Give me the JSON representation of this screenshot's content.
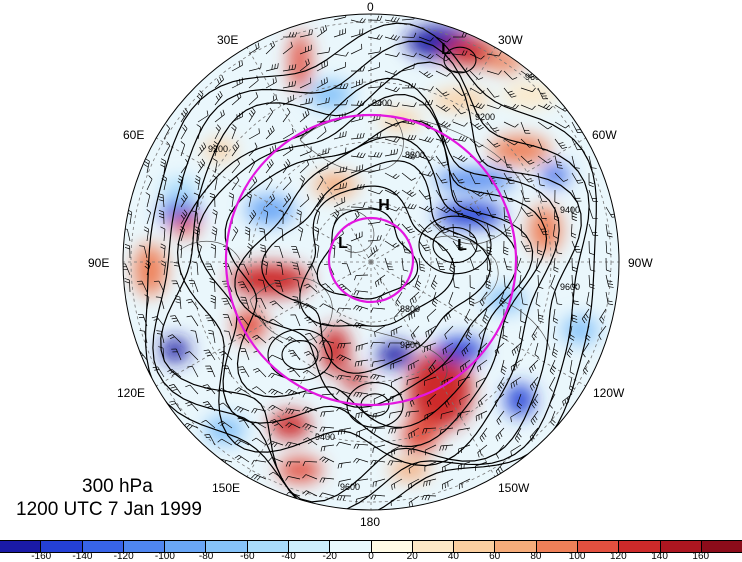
{
  "title": {
    "level": "300 hPa",
    "time": "1200 UTC 7 Jan 1999"
  },
  "longitude_labels": [
    {
      "text": "0",
      "id": "lon-0"
    },
    {
      "text": "30W",
      "id": "lon-30w"
    },
    {
      "text": "60W",
      "id": "lon-60w"
    },
    {
      "text": "90W",
      "id": "lon-90w"
    },
    {
      "text": "120W",
      "id": "lon-120w"
    },
    {
      "text": "150W",
      "id": "lon-150w"
    },
    {
      "text": "180",
      "id": "lon-180"
    },
    {
      "text": "150E",
      "id": "lon-150e"
    },
    {
      "text": "120E",
      "id": "lon-120e"
    },
    {
      "text": "90E",
      "id": "lon-90e"
    },
    {
      "text": "60E",
      "id": "lon-60e"
    },
    {
      "text": "30E",
      "id": "lon-30e"
    }
  ],
  "contour_labels": [
    "9400",
    "9600",
    "9200",
    "8800",
    "9200",
    "9400",
    "9600",
    "9800",
    "8800",
    "9400",
    "9600"
  ],
  "pressure_centers": [
    {
      "label": "H",
      "type": "high"
    },
    {
      "label": "L",
      "type": "low"
    },
    {
      "label": "L",
      "type": "low"
    },
    {
      "label": "L",
      "type": "low"
    }
  ],
  "colorbar": {
    "labels": [
      "-160",
      "-140",
      "-120",
      "-100",
      "-80",
      "-60",
      "-40",
      "-20",
      "0",
      "20",
      "40",
      "60",
      "80",
      "100",
      "120",
      "140",
      "160"
    ],
    "colors": [
      "#1a1aa6",
      "#2440d6",
      "#3864e8",
      "#4f86f0",
      "#69a6f6",
      "#86c3f9",
      "#a9dcfb",
      "#cdeefc",
      "#e9f9fd",
      "#fffbe6",
      "#fde8c6",
      "#fbcfa0",
      "#f6ac7a",
      "#ef8058",
      "#e3503f",
      "#cd2a2a",
      "#ac1620",
      "#8c0c1a"
    ]
  },
  "colors": {
    "polar_circles": "#e316e0",
    "contour": "#000000"
  }
}
